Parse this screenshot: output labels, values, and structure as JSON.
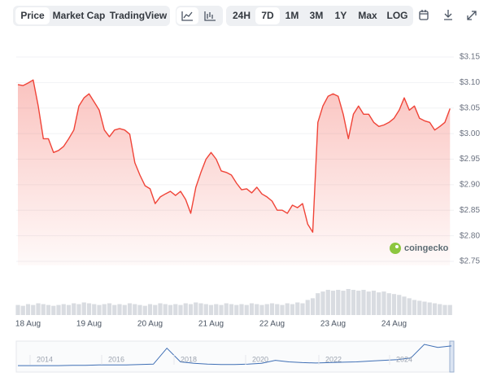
{
  "toolbar": {
    "tabs": [
      "Price",
      "Market Cap",
      "TradingView"
    ],
    "selected_tab": 0,
    "ranges": [
      "24H",
      "7D",
      "1M",
      "3M",
      "1Y",
      "Max",
      "LOG"
    ],
    "selected_range": 1
  },
  "chart_data": {
    "type": "line",
    "color": "#f04438",
    "categories": [
      null,
      null,
      "18 Aug",
      null,
      null,
      null,
      null,
      null,
      null,
      null,
      null,
      null,
      null,
      null,
      "19 Aug",
      null,
      null,
      null,
      null,
      null,
      null,
      null,
      null,
      null,
      null,
      null,
      "20 Aug",
      null,
      null,
      null,
      null,
      null,
      null,
      null,
      null,
      null,
      null,
      null,
      "21 Aug",
      null,
      null,
      null,
      null,
      null,
      null,
      null,
      null,
      null,
      null,
      null,
      "22 Aug",
      null,
      null,
      null,
      null,
      null,
      null,
      null,
      null,
      null,
      null,
      null,
      "23 Aug",
      null,
      null,
      null,
      null,
      null,
      null,
      null,
      null,
      null,
      null,
      null,
      "24 Aug",
      null,
      null,
      null,
      null,
      null,
      null,
      null,
      null,
      null,
      null,
      null
    ],
    "values": [
      3.096,
      3.094,
      3.099,
      3.105,
      3.054,
      2.99,
      2.99,
      2.963,
      2.967,
      2.975,
      2.99,
      3.007,
      3.054,
      3.07,
      3.078,
      3.062,
      3.046,
      3.007,
      2.994,
      3.007,
      3.01,
      3.007,
      2.999,
      2.943,
      2.919,
      2.898,
      2.892,
      2.863,
      2.876,
      2.882,
      2.887,
      2.879,
      2.887,
      2.871,
      2.844,
      2.895,
      2.924,
      2.95,
      2.963,
      2.95,
      2.927,
      2.924,
      2.919,
      2.903,
      2.89,
      2.892,
      2.884,
      2.895,
      2.882,
      2.876,
      2.868,
      2.85,
      2.85,
      2.844,
      2.86,
      2.855,
      2.863,
      2.823,
      2.807,
      3.022,
      3.054,
      3.073,
      3.078,
      3.073,
      3.038,
      2.99,
      3.038,
      3.054,
      3.038,
      3.038,
      3.022,
      3.014,
      3.017,
      3.022,
      3.03,
      3.046,
      3.07,
      3.046,
      3.054,
      3.03,
      3.025,
      3.022,
      3.007,
      3.014,
      3.022,
      3.049
    ],
    "volume": [
      12,
      11,
      13,
      12,
      14,
      13,
      12,
      11,
      12,
      13,
      12,
      14,
      13,
      15,
      14,
      13,
      12,
      13,
      14,
      12,
      13,
      12,
      14,
      13,
      12,
      11,
      13,
      12,
      14,
      13,
      12,
      13,
      12,
      14,
      13,
      15,
      14,
      13,
      12,
      13,
      12,
      14,
      13,
      12,
      13,
      12,
      14,
      13,
      12,
      13,
      14,
      13,
      12,
      14,
      13,
      15,
      14,
      18,
      20,
      26,
      28,
      30,
      29,
      30,
      29,
      31,
      30,
      29,
      30,
      28,
      29,
      27,
      28,
      26,
      25,
      24,
      22,
      20,
      18,
      17,
      16,
      15,
      14,
      13,
      12,
      12
    ],
    "ylim": [
      2.75,
      3.15
    ],
    "yticks": [
      {
        "value": 2.75,
        "label": "$2.75"
      },
      {
        "value": 2.8,
        "label": "$2.80"
      },
      {
        "value": 2.85,
        "label": "$2.85"
      },
      {
        "value": 2.9,
        "label": "$2.90"
      },
      {
        "value": 2.95,
        "label": "$2.95"
      },
      {
        "value": 3.0,
        "label": "$3.00"
      },
      {
        "value": 3.05,
        "label": "$3.05"
      },
      {
        "value": 3.1,
        "label": "$3.10"
      },
      {
        "value": 3.15,
        "label": "$3.15"
      }
    ],
    "grid": true,
    "watermark": "coingecko",
    "navigator": {
      "labels": [
        "2014",
        "2016",
        "2018",
        "2020",
        "2022",
        "2024"
      ],
      "values": [
        0.2,
        0.2,
        0.2,
        0.2,
        0.25,
        0.25,
        0.3,
        0.3,
        0.3,
        0.35,
        0.4,
        2.5,
        0.7,
        0.5,
        0.4,
        0.35,
        0.35,
        0.4,
        0.5,
        0.9,
        0.7,
        0.6,
        0.55,
        0.6,
        0.65,
        0.7,
        0.8,
        0.9,
        1.0,
        1.2,
        3.0,
        2.6,
        2.8
      ]
    }
  }
}
